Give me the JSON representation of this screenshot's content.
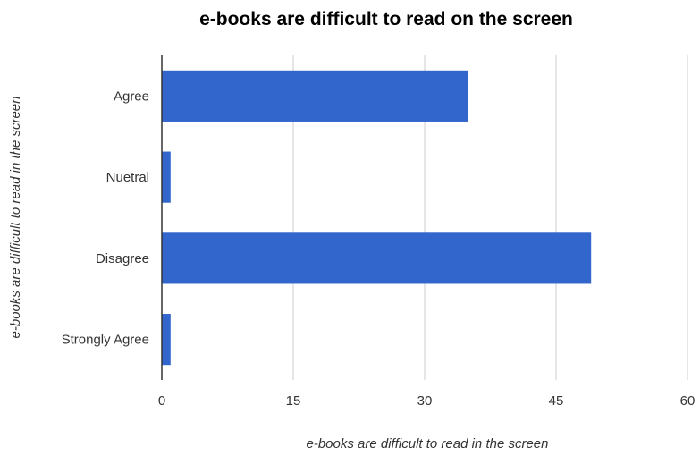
{
  "chart_data": {
    "type": "bar",
    "orientation": "horizontal",
    "title": "e-books are difficult to read on the screen",
    "xlabel": "e-books are difficult to read in the screen",
    "ylabel": "e-books are difficult to read in the screen",
    "categories": [
      "Agree",
      "Nuetral",
      "Disagree",
      "Strongly Agree"
    ],
    "values": [
      35,
      1,
      49,
      1
    ],
    "xlim": [
      0,
      60
    ],
    "xticks": [
      "0",
      "15",
      "30",
      "45",
      "60"
    ],
    "grid": true,
    "bar_color": "#3366cc"
  }
}
